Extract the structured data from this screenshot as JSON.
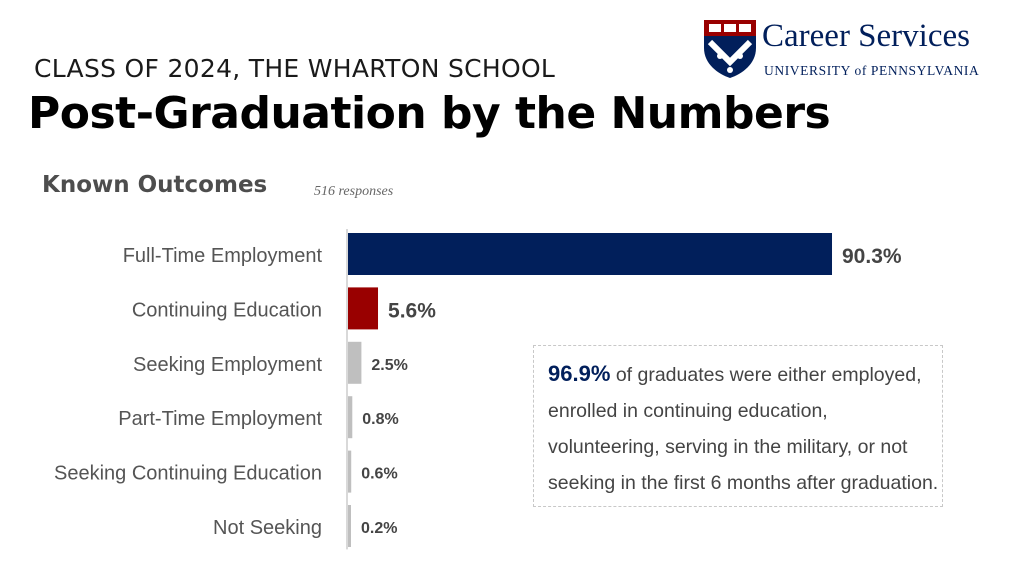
{
  "header": {
    "supertitle": "CLASS OF 2024, THE WHARTON SCHOOL",
    "title": "Post-Graduation by the Numbers"
  },
  "logo": {
    "line1": "Career Services",
    "line2": "UNIVERSITY of PENNSYLVANIA"
  },
  "section": {
    "title": "Known Outcomes",
    "note": "516 responses"
  },
  "chart_data": {
    "type": "bar",
    "orientation": "horizontal",
    "categories": [
      "Full-Time Employment",
      "Continuing Education",
      "Seeking Employment",
      "Part-Time Employment",
      "Seeking Continuing Education",
      "Not Seeking"
    ],
    "values": [
      90.3,
      5.6,
      2.5,
      0.8,
      0.6,
      0.2
    ],
    "value_labels": [
      "90.3%",
      "5.6%",
      "2.5%",
      "0.8%",
      "0.6%",
      "0.2%"
    ],
    "colors": [
      "#011F5B",
      "#990000",
      "#BFBFBF",
      "#BFBFBF",
      "#BFBFBF",
      "#BFBFBF"
    ],
    "xlim": [
      0,
      100
    ],
    "unit": "%",
    "grid": false,
    "legend": "none"
  },
  "callout": {
    "value": "96.9%",
    "text": "of graduates were either employed, enrolled in continuing education, volunteering, serving in the military, or not seeking in the first 6 months after graduation."
  },
  "colors": {
    "penn_blue": "#011F5B",
    "penn_red": "#990000"
  }
}
